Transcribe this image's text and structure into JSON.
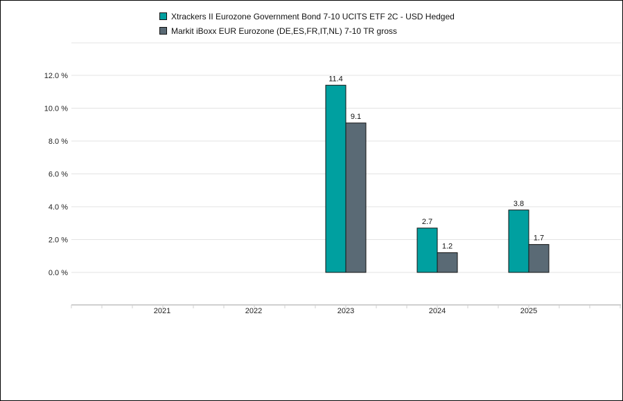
{
  "chart_data": {
    "type": "bar",
    "categories": [
      "2021",
      "2022",
      "2023",
      "2024",
      "2025"
    ],
    "series": [
      {
        "name": "Xtrackers II Eurozone Government Bond 7-10 UCITS ETF 2C - USD Hedged",
        "color": "#00a0a0",
        "values": [
          null,
          null,
          11.4,
          2.7,
          3.8
        ]
      },
      {
        "name": "Markit iBoxx EUR Eurozone (DE,ES,FR,IT,NL) 7-10 TR gross",
        "color": "#5a6a75",
        "values": [
          null,
          null,
          9.1,
          1.2,
          1.7
        ]
      }
    ],
    "y_ticks": [
      "0.0 %",
      "2.0 %",
      "4.0 %",
      "6.0 %",
      "8.0 %",
      "10.0 %",
      "12.0 %"
    ],
    "ylim": [
      0,
      12
    ],
    "grid": true,
    "legend_position": "top-center"
  }
}
